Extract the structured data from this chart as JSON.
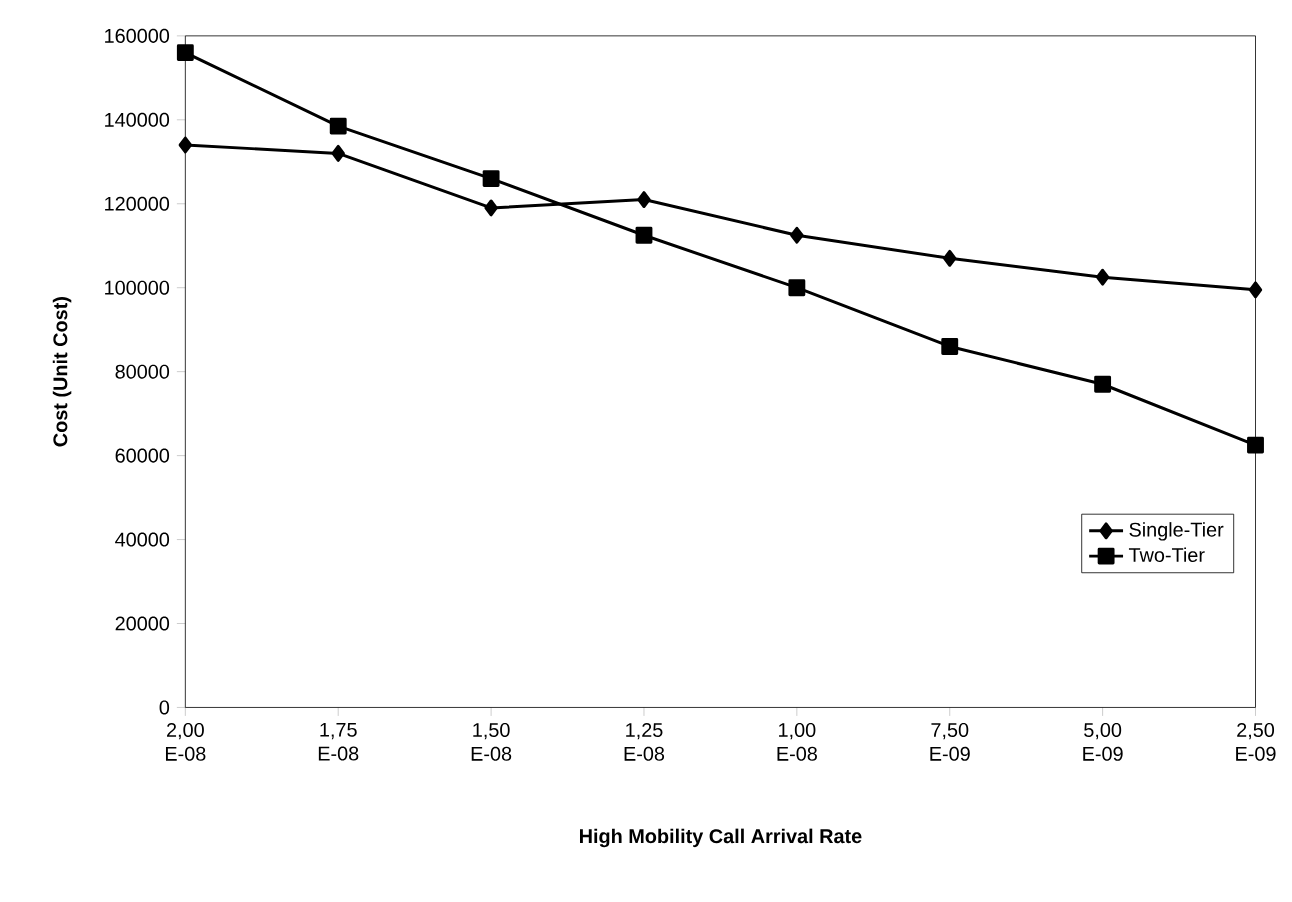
{
  "chart_data": {
    "type": "line",
    "xlabel": "High Mobility Call Arrival Rate",
    "ylabel": "Cost (Unit Cost)",
    "categories": [
      "2,00 E-08",
      "1,75 E-08",
      "1,50 E-08",
      "1,25 E-08",
      "1,00 E-08",
      "7,50 E-09",
      "5,00 E-09",
      "2,50 E-09"
    ],
    "series": [
      {
        "name": "Single-Tier",
        "color": "#000000",
        "marker": "diamond",
        "values": [
          134000,
          132000,
          119000,
          121000,
          112500,
          107000,
          102500,
          99500
        ]
      },
      {
        "name": "Two-Tier",
        "color": "#000000",
        "marker": "square",
        "values": [
          156000,
          138500,
          126000,
          112500,
          100000,
          86000,
          77000,
          62500
        ]
      }
    ],
    "ylim": [
      0,
      160000
    ],
    "yticks": [
      0,
      20000,
      40000,
      60000,
      80000,
      100000,
      120000,
      140000,
      160000
    ],
    "grid": false,
    "legend": "bottom right",
    "line_style": "solid"
  }
}
